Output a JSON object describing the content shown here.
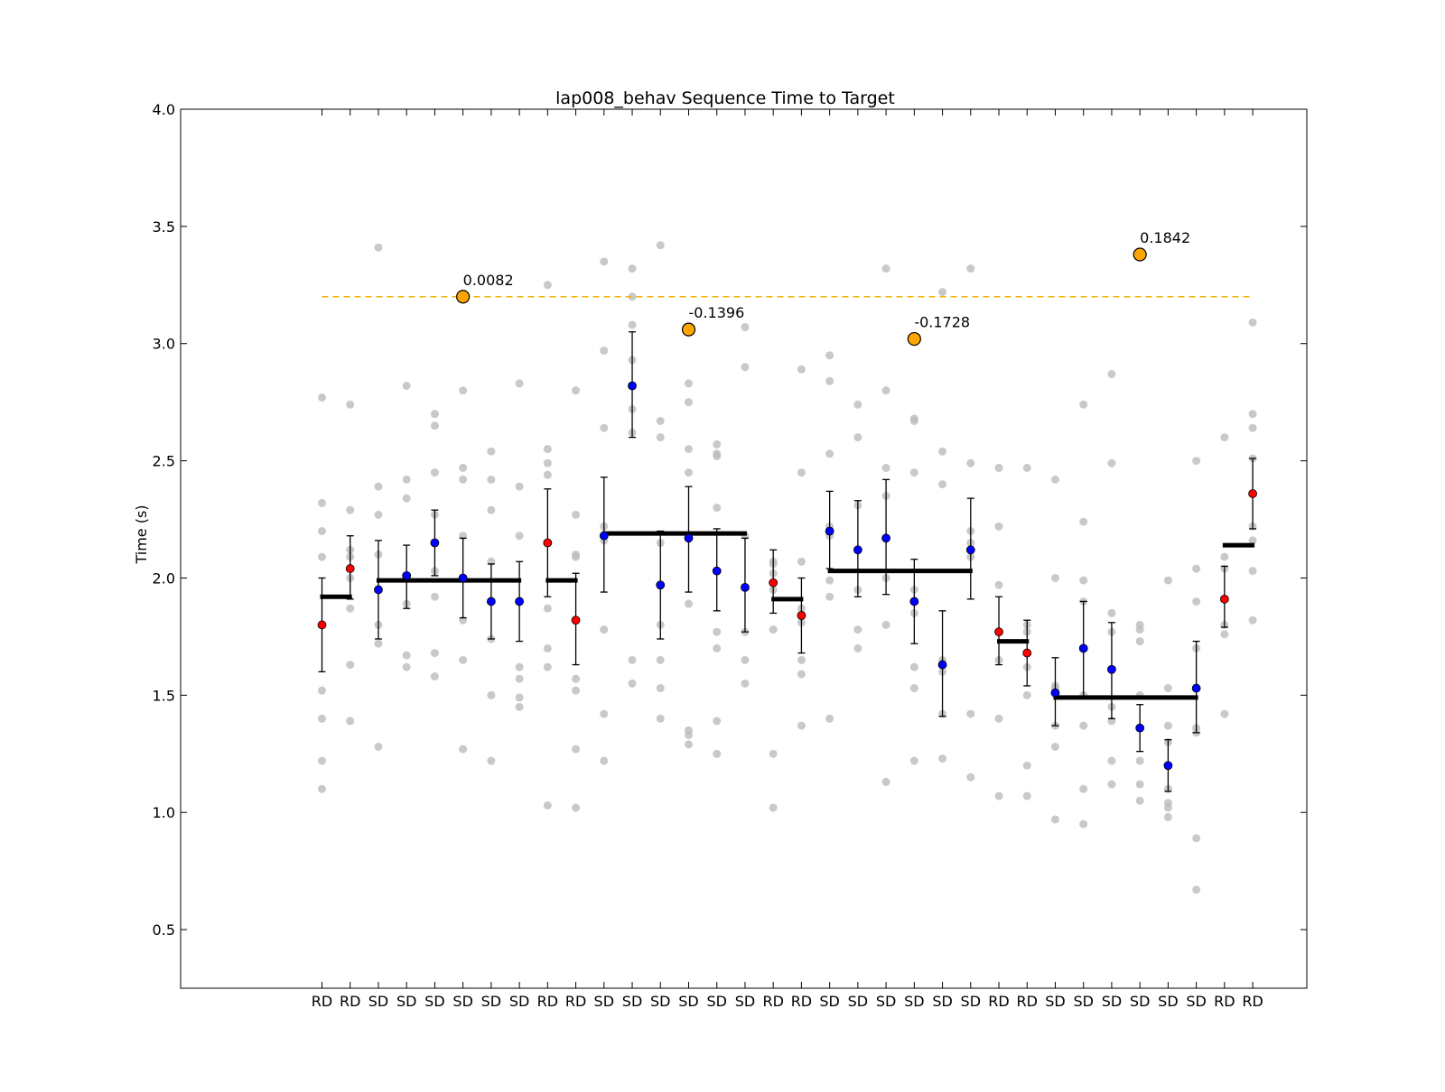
{
  "chart_data": {
    "type": "scatter",
    "title": "lap008_behav Sequence Time to Target",
    "ylabel": "Time (s)",
    "xlabel": "",
    "ylim": [
      0.25,
      4.0
    ],
    "yticks": [
      "0.5",
      "1.0",
      "1.5",
      "2.0",
      "2.5",
      "3.0",
      "3.5",
      "4.0"
    ],
    "grid": false,
    "colors": {
      "rd": "#ff0000",
      "sd": "#0000ff",
      "trial": "#bbbbbb",
      "highlight": "#ffa500",
      "ref_line": "#f0b400",
      "mean": "#000000"
    },
    "categories": [
      "RD",
      "RD",
      "SD",
      "SD",
      "SD",
      "SD",
      "SD",
      "SD",
      "RD",
      "RD",
      "SD",
      "SD",
      "SD",
      "SD",
      "SD",
      "SD",
      "RD",
      "RD",
      "SD",
      "SD",
      "SD",
      "SD",
      "SD",
      "SD",
      "RD",
      "RD",
      "SD",
      "SD",
      "SD",
      "SD",
      "SD",
      "SD",
      "RD",
      "RD"
    ],
    "means": [
      1.8,
      2.04,
      1.95,
      2.01,
      2.15,
      2.0,
      1.9,
      1.9,
      2.15,
      1.82,
      2.18,
      2.82,
      1.97,
      2.17,
      2.03,
      1.96,
      1.98,
      1.84,
      2.2,
      2.12,
      2.17,
      1.9,
      1.63,
      2.12,
      1.77,
      1.68,
      1.51,
      1.7,
      1.61,
      1.36,
      1.2,
      1.53,
      1.91,
      2.36
    ],
    "err_low": [
      1.6,
      1.91,
      1.74,
      1.87,
      2.01,
      1.83,
      1.74,
      1.73,
      1.92,
      1.63,
      1.94,
      2.6,
      1.74,
      1.94,
      1.86,
      1.77,
      1.85,
      1.68,
      2.04,
      1.92,
      1.93,
      1.72,
      1.41,
      1.91,
      1.63,
      1.54,
      1.37,
      1.49,
      1.4,
      1.26,
      1.09,
      1.34,
      1.79,
      2.21
    ],
    "err_high": [
      2.0,
      2.18,
      2.16,
      2.14,
      2.29,
      2.17,
      2.06,
      2.07,
      2.38,
      2.02,
      2.43,
      3.05,
      2.2,
      2.39,
      2.21,
      2.17,
      2.12,
      2.0,
      2.37,
      2.33,
      2.42,
      2.08,
      1.86,
      2.34,
      1.92,
      1.82,
      1.66,
      1.9,
      1.81,
      1.46,
      1.31,
      1.73,
      2.05,
      2.51
    ],
    "trials": [
      [
        2.77,
        2.32,
        2.2,
        2.09,
        1.52,
        1.4,
        1.22,
        1.1
      ],
      [
        2.74,
        2.29,
        2.12,
        2.09,
        2.0,
        1.87,
        1.63,
        1.39
      ],
      [
        3.41,
        2.39,
        2.27,
        2.1,
        1.8,
        1.72,
        1.28
      ],
      [
        2.82,
        2.42,
        2.34,
        1.89,
        1.67,
        1.62
      ],
      [
        2.7,
        2.65,
        2.45,
        2.27,
        2.03,
        1.92,
        1.68,
        1.58
      ],
      [
        2.8,
        2.47,
        2.42,
        2.18,
        1.82,
        1.65,
        1.27
      ],
      [
        2.54,
        2.42,
        2.29,
        2.07,
        1.74,
        1.5,
        1.22
      ],
      [
        2.83,
        2.39,
        2.18,
        1.62,
        1.57,
        1.49,
        1.45
      ],
      [
        3.25,
        2.55,
        2.49,
        2.44,
        1.87,
        1.7,
        1.62,
        1.03
      ],
      [
        2.8,
        2.27,
        2.1,
        2.09,
        1.57,
        1.52,
        1.27,
        1.02
      ],
      [
        3.35,
        2.97,
        2.64,
        2.22,
        2.16,
        1.78,
        1.42,
        1.22
      ],
      [
        3.32,
        3.2,
        3.08,
        2.93,
        2.72,
        2.62,
        1.65,
        1.55
      ],
      [
        3.42,
        2.67,
        2.6,
        2.15,
        1.8,
        1.65,
        1.53,
        1.4
      ],
      [
        2.83,
        2.75,
        2.55,
        2.45,
        1.89,
        1.35,
        1.33,
        1.29
      ],
      [
        2.57,
        2.53,
        2.52,
        2.3,
        1.77,
        1.7,
        1.39,
        1.25
      ],
      [
        3.07,
        2.9,
        2.18,
        1.77,
        1.65,
        1.55
      ],
      [
        2.07,
        2.06,
        2.02,
        1.95,
        1.78,
        1.25,
        1.02
      ],
      [
        2.89,
        2.45,
        2.07,
        1.87,
        1.81,
        1.65,
        1.59,
        1.37
      ],
      [
        2.95,
        2.84,
        2.53,
        2.22,
        2.18,
        1.99,
        1.92,
        1.4
      ],
      [
        2.74,
        2.6,
        2.31,
        1.95,
        1.78,
        1.7
      ],
      [
        3.32,
        2.8,
        2.47,
        2.35,
        2.0,
        1.8,
        1.13
      ],
      [
        2.68,
        2.67,
        2.45,
        1.95,
        1.85,
        1.62,
        1.53,
        1.22
      ],
      [
        3.22,
        2.54,
        2.4,
        1.65,
        1.6,
        1.42,
        1.23
      ],
      [
        3.32,
        2.49,
        2.2,
        2.15,
        2.09,
        1.42,
        1.15
      ],
      [
        2.47,
        2.22,
        1.97,
        1.65,
        1.4,
        1.07
      ],
      [
        2.47,
        1.8,
        1.77,
        1.62,
        1.5,
        1.2,
        1.07
      ],
      [
        2.42,
        2.0,
        1.54,
        1.53,
        1.37,
        1.28,
        0.97
      ],
      [
        2.74,
        2.24,
        1.99,
        1.9,
        1.5,
        1.37,
        1.1,
        0.95
      ],
      [
        2.87,
        2.49,
        1.85,
        1.77,
        1.45,
        1.39,
        1.22,
        1.12
      ],
      [
        1.8,
        1.78,
        1.73,
        1.5,
        1.22,
        1.12,
        1.05
      ],
      [
        1.99,
        1.53,
        1.37,
        1.3,
        1.1,
        1.04,
        1.02,
        0.98
      ],
      [
        2.5,
        2.04,
        1.9,
        1.7,
        1.36,
        1.34,
        0.89,
        0.67
      ],
      [
        2.6,
        2.09,
        2.04,
        1.8,
        1.76,
        1.42
      ],
      [
        3.09,
        2.7,
        2.64,
        2.51,
        2.22,
        2.16,
        2.03,
        1.82
      ]
    ],
    "group_means": [
      {
        "from": 0,
        "to": 1,
        "value": 1.92
      },
      {
        "from": 2,
        "to": 7,
        "value": 1.99
      },
      {
        "from": 8,
        "to": 9,
        "value": 1.99
      },
      {
        "from": 10,
        "to": 15,
        "value": 2.19
      },
      {
        "from": 16,
        "to": 17,
        "value": 1.91
      },
      {
        "from": 18,
        "to": 23,
        "value": 2.03
      },
      {
        "from": 24,
        "to": 25,
        "value": 1.73
      },
      {
        "from": 26,
        "to": 31,
        "value": 1.49
      },
      {
        "from": 32,
        "to": 33,
        "value": 2.14
      }
    ],
    "reference_line": {
      "value": 3.2,
      "from": 0,
      "to": 33
    },
    "highlights": [
      {
        "index": 5,
        "value": 3.2,
        "label": "0.0082"
      },
      {
        "index": 13,
        "value": 3.06,
        "label": "-0.1396"
      },
      {
        "index": 21,
        "value": 3.02,
        "label": "-0.1728"
      },
      {
        "index": 29,
        "value": 3.38,
        "label": "0.1842"
      }
    ]
  }
}
